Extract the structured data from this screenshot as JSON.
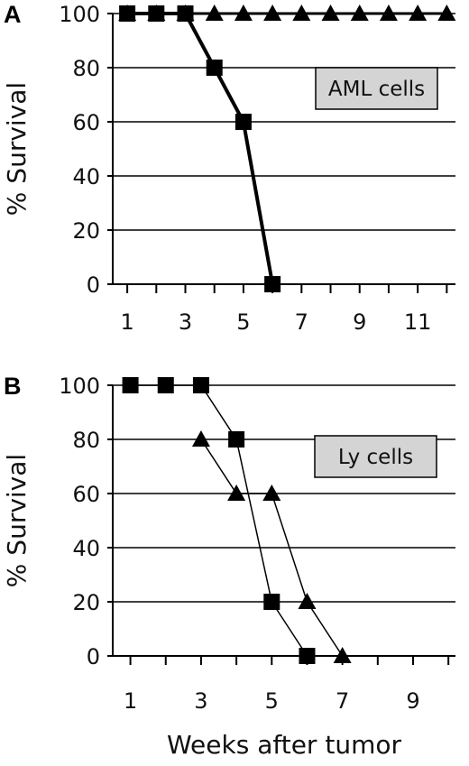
{
  "chart_data": [
    {
      "type": "line",
      "panel": "A",
      "annotation": "AML cells",
      "xlabel": "",
      "ylabel": "% Survival",
      "xlim": [
        0.5,
        12.3
      ],
      "ylim": [
        0,
        100
      ],
      "x_ticks": [
        1,
        3,
        5,
        7,
        9,
        11
      ],
      "y_ticks": [
        0,
        20,
        40,
        60,
        80,
        100
      ],
      "grid": "horizontal",
      "series": [
        {
          "marker": "square",
          "x": [
            1,
            2,
            3,
            4,
            5,
            6
          ],
          "y": [
            100,
            100,
            100,
            80,
            60,
            0
          ]
        },
        {
          "marker": "triangle",
          "x": [
            1,
            2,
            3,
            4,
            5,
            6,
            7,
            8,
            9,
            10,
            11,
            12
          ],
          "y": [
            100,
            100,
            100,
            100,
            100,
            100,
            100,
            100,
            100,
            100,
            100,
            100
          ]
        }
      ]
    },
    {
      "type": "line",
      "panel": "B",
      "annotation": "Ly cells",
      "xlabel": "Weeks after tumor",
      "ylabel": "% Survival",
      "xlim": [
        0.5,
        10.2
      ],
      "ylim": [
        0,
        100
      ],
      "x_ticks": [
        1,
        3,
        5,
        7,
        9
      ],
      "y_ticks": [
        0,
        20,
        40,
        60,
        80,
        100
      ],
      "grid": "horizontal",
      "series": [
        {
          "marker": "square",
          "x": [
            1,
            2,
            3,
            4,
            5,
            6
          ],
          "y": [
            100,
            100,
            100,
            80,
            20,
            0
          ]
        },
        {
          "marker": "triangle",
          "x": [
            3,
            4,
            5,
            6,
            7
          ],
          "y": [
            80,
            60,
            60,
            20,
            0
          ]
        }
      ]
    }
  ]
}
